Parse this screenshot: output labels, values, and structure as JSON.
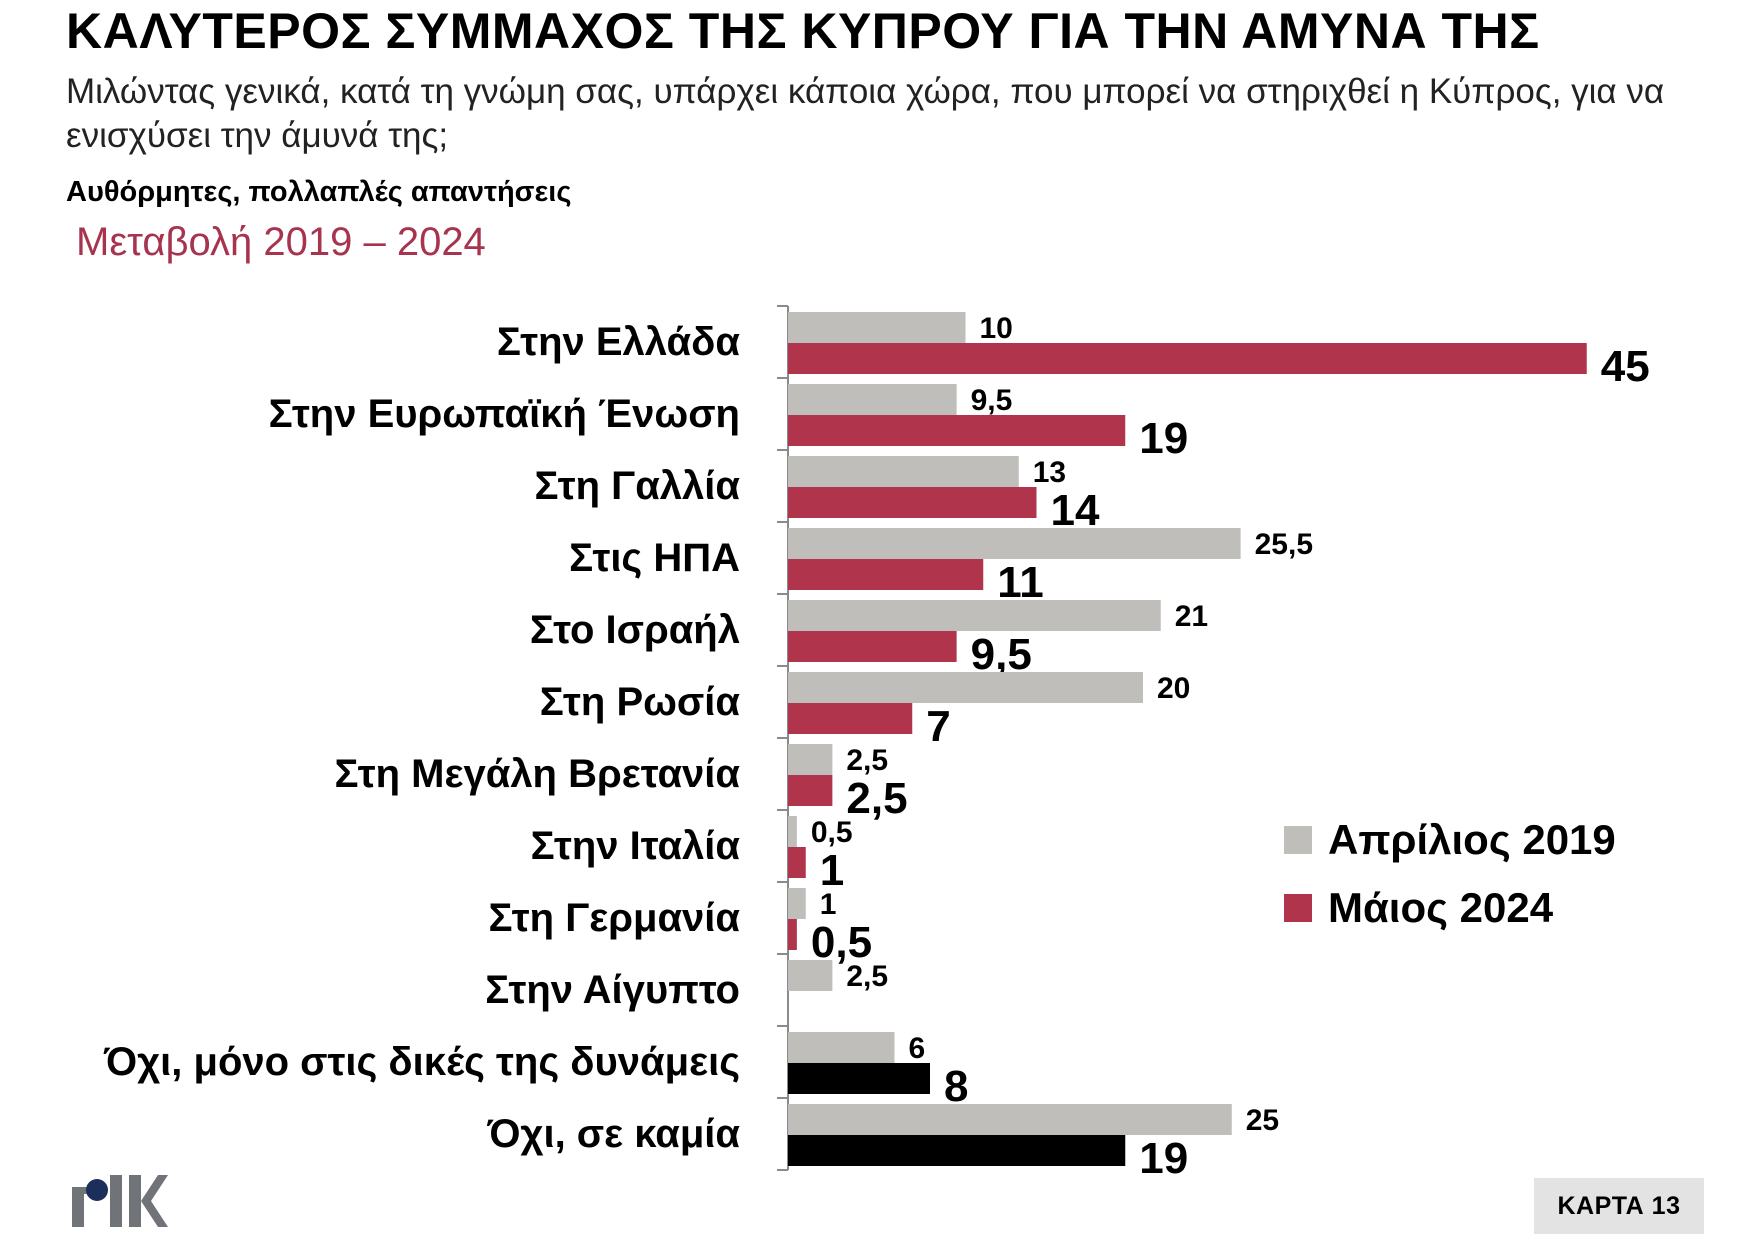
{
  "header": {
    "title": "ΚΑΛΥΤΕΡΟΣ ΣΥΜΜΑΧΟΣ ΤΗΣ ΚΥΠΡΟΥ ΓΙΑ ΤΗΝ ΑΜΥΝΑ ΤΗΣ",
    "question": "Μιλώντας γενικά, κατά τη γνώμη σας, υπάρχει κάποια χώρα, που μπορεί να στηριχθεί η Κύπρος, για να ενισχύσει την άμυνά της;",
    "note": "Αυθόρμητες, πολλαπλές απαντήσεις",
    "change_label": "Μεταβολή 2019 – 2024"
  },
  "chart_data": {
    "type": "bar",
    "orientation": "horizontal",
    "categories": [
      "Στην Ελλάδα",
      "Στην Ευρωπαϊκή Ένωση",
      "Στη Γαλλία",
      "Στις ΗΠΑ",
      "Στο Ισραήλ",
      "Στη Ρωσία",
      "Στη Μεγάλη Βρετανία",
      "Στην Ιταλία",
      "Στη Γερμανία",
      "Στην Αίγυπτο",
      "Όχι, μόνο στις δικές της δυνάμεις",
      "Όχι, σε καμία"
    ],
    "series": [
      {
        "name": "Απρίλιος 2019",
        "color": "#bfbebb",
        "values": [
          10,
          9.5,
          13,
          25.5,
          21,
          20,
          2.5,
          0.5,
          1,
          2.5,
          6,
          25
        ],
        "labels": [
          "10",
          "9,5",
          "13",
          "25,5",
          "21",
          "20",
          "2,5",
          "0,5",
          "1",
          "2,5",
          "6",
          "25"
        ]
      },
      {
        "name": "Μάιος 2024",
        "color": "#b0344b",
        "values": [
          45,
          19,
          14,
          11,
          9.5,
          7,
          2.5,
          1,
          0.5,
          null,
          8,
          19
        ],
        "labels": [
          "45",
          "19",
          "14",
          "11",
          "9,5",
          "7",
          "2,5",
          "1",
          "0,5",
          "",
          "8",
          "19"
        ],
        "point_colors": [
          "#b0344b",
          "#b0344b",
          "#b0344b",
          "#b0344b",
          "#b0344b",
          "#b0344b",
          "#b0344b",
          "#b0344b",
          "#b0344b",
          "#b0344b",
          "#000000",
          "#000000"
        ]
      }
    ],
    "xlim": [
      0,
      45
    ],
    "grid": false,
    "legend": "right"
  },
  "legend": {
    "items": [
      {
        "label": "Απρίλιος 2019",
        "color": "#bfbebb"
      },
      {
        "label": "Μάιος 2024",
        "color": "#b0344b"
      }
    ]
  },
  "footer": {
    "logo_text": "ΡΙΚ",
    "map_label": "ΚΑΡΤΑ 13"
  }
}
